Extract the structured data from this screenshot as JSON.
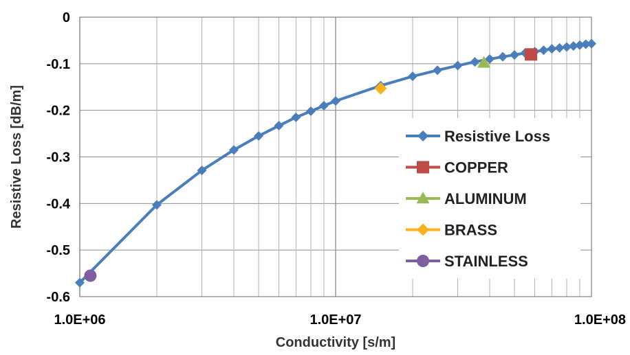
{
  "chart_data": {
    "type": "scatter",
    "xscale": "log",
    "xlim": [
      1000000,
      100000000
    ],
    "ylim": [
      -0.6,
      0
    ],
    "xlabel": "Conductivity [s/m]",
    "ylabel": "Resistive Loss [dB/m]",
    "x_tick_labels": [
      "1.0E+06",
      "1.0E+07",
      "1.0E+08"
    ],
    "x_ticks": [
      1000000,
      10000000,
      100000000
    ],
    "y_ticks": [
      0,
      -0.1,
      -0.2,
      -0.3,
      -0.4,
      -0.5,
      -0.6
    ],
    "y_tick_labels": [
      "0",
      "-0.1",
      "-0.2",
      "-0.3",
      "-0.4",
      "-0.5",
      "-0.6"
    ],
    "grid": true,
    "legend_position": "lower-right",
    "series": [
      {
        "name": "Resistive Loss",
        "color": "#4a7ebb",
        "marker": "diamond",
        "line": true,
        "x": [
          1000000,
          2000000,
          3000000,
          4000000,
          5000000,
          6000000,
          7000000,
          8000000,
          9000000,
          10000000,
          15000000,
          20000000,
          25000000,
          30000000,
          35000000,
          40000000,
          45000000,
          50000000,
          55000000,
          60000000,
          65000000,
          70000000,
          75000000,
          80000000,
          85000000,
          90000000,
          95000000,
          100000000
        ],
        "y": [
          -0.57,
          -0.403,
          -0.329,
          -0.285,
          -0.255,
          -0.233,
          -0.215,
          -0.202,
          -0.19,
          -0.18,
          -0.147,
          -0.127,
          -0.114,
          -0.104,
          -0.096,
          -0.09,
          -0.085,
          -0.081,
          -0.077,
          -0.074,
          -0.071,
          -0.068,
          -0.066,
          -0.064,
          -0.062,
          -0.06,
          -0.058,
          -0.057
        ]
      },
      {
        "name": "COPPER",
        "color": "#be4b48",
        "marker": "square",
        "line": false,
        "x": [
          58000000
        ],
        "y": [
          -0.08
        ]
      },
      {
        "name": "ALUMINUM",
        "color": "#98b954",
        "marker": "triangle",
        "line": false,
        "x": [
          38000000
        ],
        "y": [
          -0.098
        ]
      },
      {
        "name": "BRASS",
        "color": "#f9b21d",
        "marker": "diamond",
        "line": false,
        "x": [
          15000000
        ],
        "y": [
          -0.153
        ]
      },
      {
        "name": "STAINLESS",
        "color": "#7d5fa0",
        "marker": "circle",
        "line": false,
        "x": [
          1100000
        ],
        "y": [
          -0.555
        ]
      }
    ]
  }
}
